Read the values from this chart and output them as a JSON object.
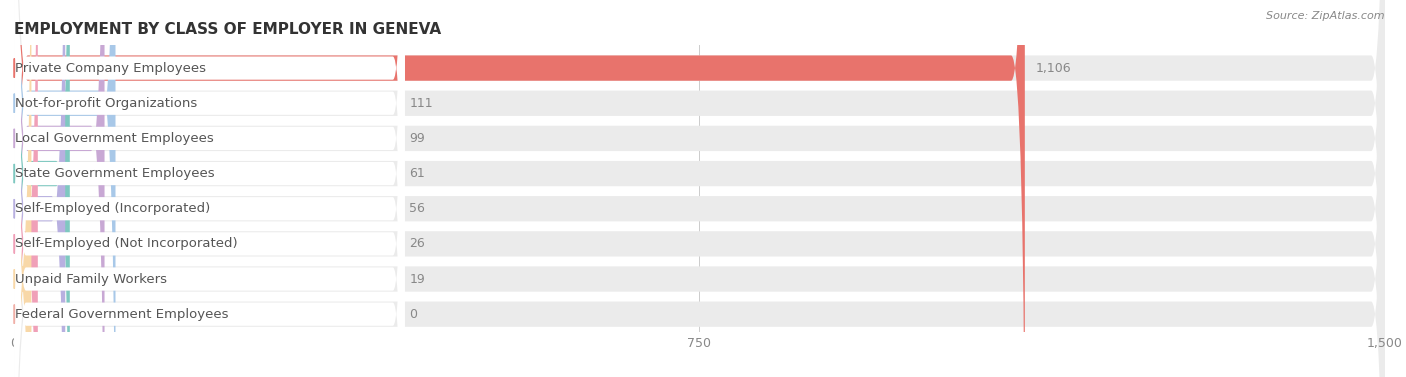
{
  "title": "EMPLOYMENT BY CLASS OF EMPLOYER IN GENEVA",
  "source": "Source: ZipAtlas.com",
  "categories": [
    "Private Company Employees",
    "Not-for-profit Organizations",
    "Local Government Employees",
    "State Government Employees",
    "Self-Employed (Incorporated)",
    "Self-Employed (Not Incorporated)",
    "Unpaid Family Workers",
    "Federal Government Employees"
  ],
  "values": [
    1106,
    111,
    99,
    61,
    56,
    26,
    19,
    0
  ],
  "bar_colors": [
    "#e8736c",
    "#a8c8e8",
    "#c8a8d4",
    "#7ec8c0",
    "#b8b0e0",
    "#f0a0b8",
    "#f8d8a8",
    "#f0b0a8"
  ],
  "row_bg_color": "#ebebeb",
  "bar_bg_color": "#ffffff",
  "xlim_max": 1500,
  "xticks": [
    0,
    750,
    1500
  ],
  "title_fontsize": 11,
  "label_fontsize": 9.5,
  "value_fontsize": 9,
  "background_color": "#ffffff"
}
